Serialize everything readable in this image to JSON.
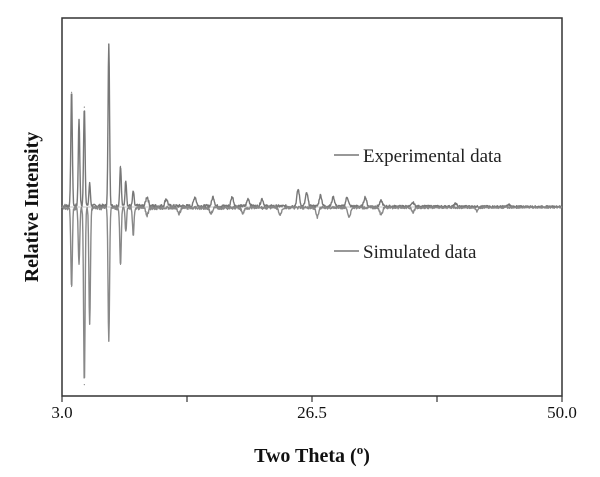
{
  "chart_data": {
    "type": "line",
    "title": "",
    "xlabel": "Two Theta (",
    "xlabel_superscript": "o",
    "xlabel_suffix": ")",
    "ylabel": "Relative Intensity",
    "xlim": [
      3.0,
      50.0
    ],
    "ylim": [
      -1.0,
      1.0
    ],
    "x_tick_labels": [
      "3.0",
      "26.5",
      "50.0"
    ],
    "x_ticks": [
      3.0,
      14.75,
      26.5,
      38.25,
      50.0
    ],
    "grid": false,
    "legend_placement": "annotated",
    "series": [
      {
        "name": "Experimental data",
        "color": "#777777",
        "direction": "up",
        "peaks": [
          [
            3.9,
            0.62
          ],
          [
            4.6,
            0.47
          ],
          [
            5.1,
            0.54
          ],
          [
            5.6,
            0.12
          ],
          [
            7.4,
            0.88
          ],
          [
            8.5,
            0.22
          ],
          [
            9.0,
            0.14
          ],
          [
            9.7,
            0.08
          ],
          [
            11.0,
            0.05
          ],
          [
            12.8,
            0.04
          ],
          [
            15.5,
            0.05
          ],
          [
            17.2,
            0.05
          ],
          [
            19.0,
            0.05
          ],
          [
            20.5,
            0.04
          ],
          [
            21.8,
            0.04
          ],
          [
            25.2,
            0.09
          ],
          [
            26.0,
            0.07
          ],
          [
            27.3,
            0.06
          ],
          [
            28.5,
            0.05
          ],
          [
            29.8,
            0.05
          ],
          [
            31.5,
            0.05
          ],
          [
            33.0,
            0.03
          ],
          [
            36.0,
            0.02
          ],
          [
            40.0,
            0.015
          ],
          [
            45.0,
            0.01
          ]
        ]
      },
      {
        "name": "Simulated data",
        "color": "#888888",
        "direction": "down",
        "peaks": [
          [
            3.9,
            -0.43
          ],
          [
            4.6,
            -0.31
          ],
          [
            5.1,
            -0.96
          ],
          [
            5.6,
            -0.63
          ],
          [
            7.4,
            -0.72
          ],
          [
            8.5,
            -0.31
          ],
          [
            9.0,
            -0.12
          ],
          [
            9.7,
            -0.15
          ],
          [
            11.0,
            -0.04
          ],
          [
            14.0,
            -0.03
          ],
          [
            17.0,
            -0.03
          ],
          [
            20.0,
            -0.03
          ],
          [
            23.5,
            -0.04
          ],
          [
            27.0,
            -0.05
          ],
          [
            30.0,
            -0.05
          ],
          [
            33.0,
            -0.04
          ],
          [
            36.0,
            -0.025
          ],
          [
            42.0,
            -0.02
          ]
        ]
      }
    ]
  }
}
